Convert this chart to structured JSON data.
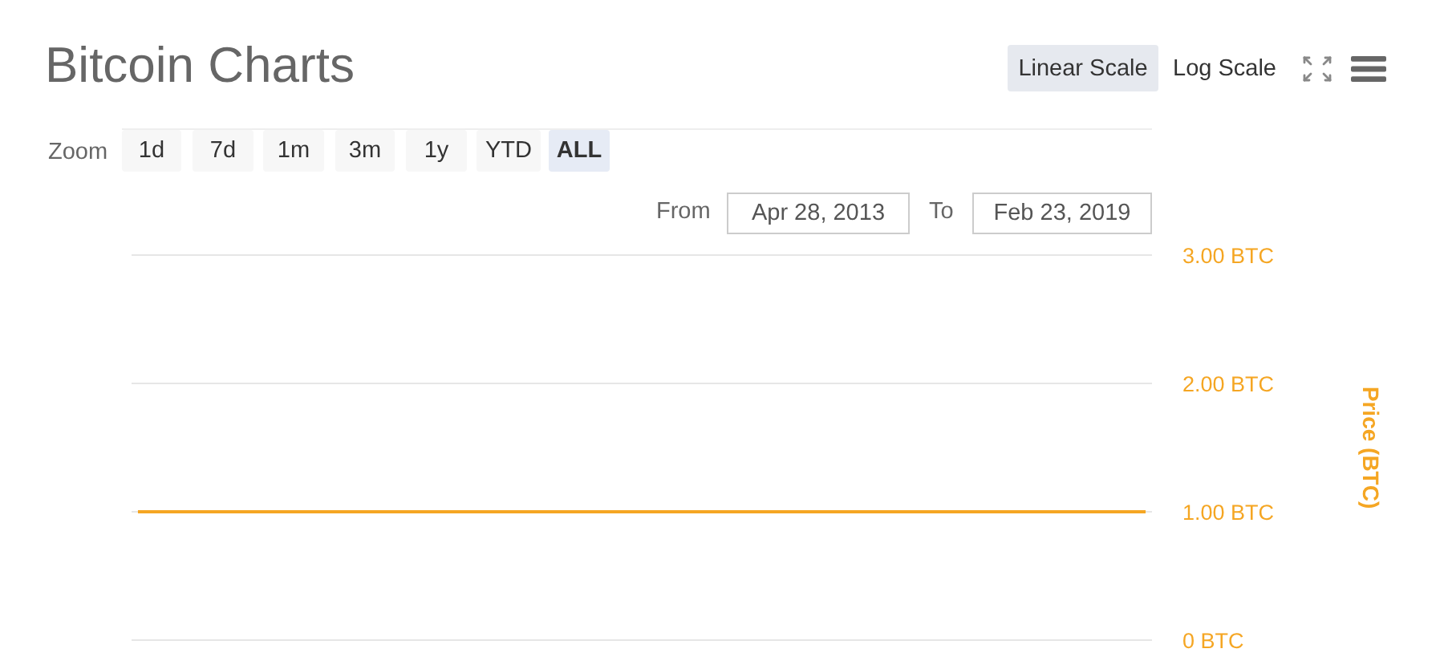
{
  "chart_data": {
    "type": "line",
    "title": "Bitcoin Charts",
    "ylabel": "Price (BTC)",
    "categories": [
      null,
      null,
      null,
      null,
      null,
      null,
      null,
      null,
      null,
      null,
      null,
      null,
      null,
      null,
      null,
      null,
      null,
      null,
      null,
      null,
      null,
      null,
      null,
      null,
      null,
      null,
      null,
      null,
      null,
      null,
      null,
      null,
      null,
      null,
      null,
      null,
      null,
      null,
      null,
      null,
      null,
      null,
      null,
      null,
      null,
      null,
      null,
      null,
      null,
      null,
      null,
      null,
      null,
      null,
      null,
      null,
      null,
      null,
      null,
      null,
      null,
      null,
      null,
      null,
      null,
      null,
      null,
      null,
      null,
      null,
      null,
      null,
      null,
      null,
      null,
      null,
      null,
      null,
      null,
      null
    ],
    "series": [
      {
        "color": "#f5a623",
        "values": [
          1,
          1,
          1,
          1,
          1,
          1,
          1,
          1,
          1,
          1,
          1,
          1,
          1,
          1,
          1,
          1,
          1,
          1,
          1,
          1,
          1,
          1,
          1,
          1,
          1,
          1,
          1,
          1,
          1,
          1,
          1,
          1,
          1,
          1,
          1,
          1,
          1,
          1,
          1,
          1,
          1,
          1,
          1,
          1,
          1,
          1,
          1,
          1,
          1,
          1,
          1,
          1,
          1,
          1,
          1,
          1,
          1,
          1,
          1,
          1,
          1,
          1,
          1,
          1,
          1,
          1,
          1,
          1,
          1,
          1,
          1,
          1,
          1,
          1,
          1,
          1,
          1,
          1,
          1,
          1
        ]
      }
    ],
    "ylim": [
      0,
      3
    ],
    "yticks": [
      {
        "value": 0,
        "label": "0 BTC"
      },
      {
        "value": 1,
        "label": "1.00 BTC"
      },
      {
        "value": 2,
        "label": "2.00 BTC"
      },
      {
        "value": 3,
        "label": "3.00 BTC"
      }
    ],
    "grid": "y",
    "marker": "none",
    "tick_labels": "y",
    "annotations": [
      "Linear Scale",
      "Log Scale",
      "Zoom",
      "1d",
      "7d",
      "1m",
      "3m",
      "1y",
      "YTD",
      "ALL",
      "From",
      "Apr 28, 2013",
      "To",
      "Feb 23, 2019"
    ]
  }
}
